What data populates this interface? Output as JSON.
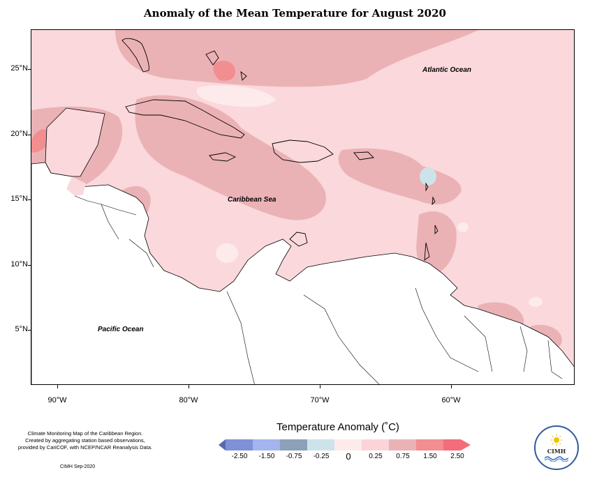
{
  "title": "Anomaly of the Mean Temperature for August 2020",
  "map": {
    "labels": {
      "atlantic": "Atlantic Ocean",
      "caribbean": "Caribbean Sea",
      "pacific": "Pacific Ocean"
    },
    "lat_ticks": [
      "25°N",
      "20°N",
      "15°N",
      "10°N",
      "5°N"
    ],
    "lon_ticks": [
      "90°W",
      "80°W",
      "70°W",
      "60°W"
    ],
    "base_color": "#fad8dc",
    "land_fill": "#ffffff"
  },
  "legend": {
    "title": "Temperature Anomaly (˚C)",
    "ticks": [
      "-2.50",
      "-1.50",
      "-0.75",
      "-0.25",
      "0",
      "0.25",
      "0.75",
      "1.50",
      "2.50"
    ],
    "colors": [
      "#5a6aa8",
      "#7f91d6",
      "#a3b4ef",
      "#8ca0b8",
      "#cde3ea",
      "#fdebeb",
      "#fad4d8",
      "#ebb2b5",
      "#f28d90",
      "#f36d7a"
    ]
  },
  "footer": {
    "note_line1": "Climate Monitoring Map of the Caribbean Region.",
    "note_line2": "Created by aggregating station based observations,",
    "note_line3": "provided by CariCOF, with NCEP/NCAR Reanalysis Data.",
    "credit": "CIMH Sep-2020"
  },
  "logo": {
    "text": "CIMH"
  }
}
